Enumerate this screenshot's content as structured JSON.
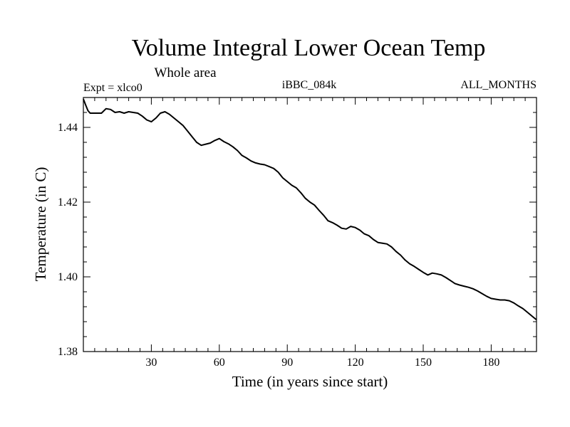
{
  "chart_data": {
    "type": "line",
    "title": "Volume Integral Lower Ocean Temp",
    "subtitle": "Whole area",
    "expt_label": "Expt = xlco0",
    "run_label": "iBBC_084k",
    "months_label": "ALL_MONTHS",
    "xlabel": "Time (in years since start)",
    "ylabel": "Temperature (in C)",
    "xlim": [
      0,
      200
    ],
    "ylim": [
      1.38,
      1.448
    ],
    "xticks": [
      30,
      60,
      90,
      120,
      150,
      180
    ],
    "xtick_labels": [
      "30",
      "60",
      "90",
      "120",
      "150",
      "180"
    ],
    "yticks": [
      1.38,
      1.4,
      1.42,
      1.44
    ],
    "ytick_labels": [
      "1.38",
      "1.40",
      "1.42",
      "1.44"
    ],
    "grid": false,
    "series": [
      {
        "name": "temperature",
        "color": "#000000",
        "x": [
          0,
          1,
          2,
          3,
          5,
          8,
          10,
          12,
          14,
          16,
          18,
          20,
          22,
          24,
          26,
          28,
          30,
          32,
          34,
          36,
          38,
          40,
          42,
          44,
          46,
          48,
          50,
          52,
          54,
          56,
          58,
          60,
          62,
          64,
          66,
          68,
          70,
          72,
          74,
          76,
          78,
          80,
          82,
          84,
          86,
          88,
          90,
          92,
          94,
          96,
          98,
          100,
          102,
          104,
          106,
          108,
          110,
          112,
          114,
          116,
          118,
          120,
          122,
          124,
          126,
          128,
          130,
          132,
          134,
          136,
          138,
          140,
          142,
          144,
          146,
          148,
          150,
          152,
          154,
          156,
          158,
          160,
          162,
          164,
          166,
          168,
          170,
          172,
          174,
          176,
          178,
          180,
          182,
          184,
          186,
          188,
          190,
          192,
          194,
          196,
          198,
          200
        ],
        "values": [
          1.4476,
          1.446,
          1.4445,
          1.4438,
          1.4438,
          1.4438,
          1.445,
          1.4448,
          1.444,
          1.4442,
          1.4438,
          1.4442,
          1.444,
          1.4438,
          1.443,
          1.442,
          1.4415,
          1.4425,
          1.4438,
          1.4442,
          1.4435,
          1.4425,
          1.4415,
          1.4405,
          1.439,
          1.4375,
          1.436,
          1.4352,
          1.4355,
          1.4358,
          1.4365,
          1.437,
          1.4362,
          1.4356,
          1.4348,
          1.4338,
          1.4325,
          1.4318,
          1.431,
          1.4305,
          1.4302,
          1.43,
          1.4295,
          1.429,
          1.428,
          1.4265,
          1.4255,
          1.4245,
          1.4238,
          1.4225,
          1.421,
          1.42,
          1.4192,
          1.4178,
          1.4165,
          1.415,
          1.4145,
          1.4138,
          1.413,
          1.4128,
          1.4135,
          1.4132,
          1.4125,
          1.4115,
          1.411,
          1.41,
          1.4092,
          1.409,
          1.4088,
          1.408,
          1.4068,
          1.4058,
          1.4045,
          1.4035,
          1.4028,
          1.402,
          1.4012,
          1.4005,
          1.401,
          1.4008,
          1.4005,
          1.3998,
          1.399,
          1.3982,
          1.3978,
          1.3975,
          1.3972,
          1.3968,
          1.3962,
          1.3955,
          1.3948,
          1.3942,
          1.394,
          1.3938,
          1.3938,
          1.3936,
          1.393,
          1.3922,
          1.3915,
          1.3905,
          1.3895,
          1.3885
        ]
      }
    ]
  }
}
